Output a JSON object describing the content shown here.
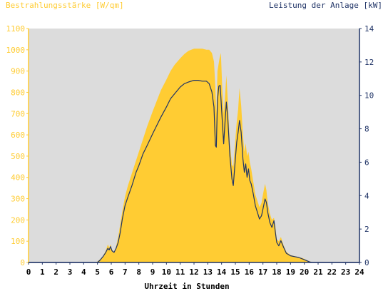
{
  "chart_data": {
    "type": "area",
    "title_left": "Bestrahlungsstärke [W/qm]",
    "title_right": "Leistung der Anlage [kW]",
    "xlabel": "Uhrzeit in Stunden",
    "x_ticks": [
      "0",
      "1",
      "2",
      "3",
      "4",
      "5",
      "6",
      "7",
      "8",
      "9",
      "10",
      "11",
      "12",
      "13",
      "14",
      "15",
      "16",
      "17",
      "18",
      "19",
      "20",
      "21",
      "22",
      "23",
      "24"
    ],
    "y_left_ticks": [
      "0",
      "100",
      "200",
      "300",
      "400",
      "500",
      "600",
      "700",
      "800",
      "900",
      "1000",
      "1100"
    ],
    "y_right_ticks": [
      "0",
      "2",
      "4",
      "6",
      "8",
      "10",
      "12",
      "14"
    ],
    "xlim": [
      0,
      24
    ],
    "ylim_left": [
      0,
      1100
    ],
    "ylim_right": [
      0,
      14
    ],
    "grid": false,
    "colors": {
      "plot_background": "#dcdcdc",
      "irradiance_fill": "#ffcc33",
      "power_line": "#1f3366",
      "left_axis_text": "#ffcc33",
      "right_axis_text": "#1f3366",
      "x_axis_text": "#000000"
    },
    "series": [
      {
        "axis": "left",
        "style": "filled-area",
        "points": [
          [
            0,
            0
          ],
          [
            4.9,
            0
          ],
          [
            5.0,
            5
          ],
          [
            5.2,
            15
          ],
          [
            5.4,
            30
          ],
          [
            5.6,
            55
          ],
          [
            5.75,
            85
          ],
          [
            5.85,
            70
          ],
          [
            5.95,
            85
          ],
          [
            6.05,
            60
          ],
          [
            6.2,
            50
          ],
          [
            6.35,
            75
          ],
          [
            6.5,
            120
          ],
          [
            6.65,
            180
          ],
          [
            6.8,
            240
          ],
          [
            7.0,
            310
          ],
          [
            7.2,
            360
          ],
          [
            7.5,
            420
          ],
          [
            7.8,
            480
          ],
          [
            8.0,
            520
          ],
          [
            8.3,
            580
          ],
          [
            8.6,
            640
          ],
          [
            9.0,
            710
          ],
          [
            9.3,
            760
          ],
          [
            9.6,
            810
          ],
          [
            10.0,
            860
          ],
          [
            10.3,
            900
          ],
          [
            10.6,
            930
          ],
          [
            11.0,
            960
          ],
          [
            11.3,
            980
          ],
          [
            11.6,
            995
          ],
          [
            12.0,
            1005
          ],
          [
            12.3,
            1005
          ],
          [
            12.6,
            1005
          ],
          [
            12.9,
            1000
          ],
          [
            13.1,
            1000
          ],
          [
            13.3,
            985
          ],
          [
            13.45,
            945
          ],
          [
            13.55,
            820
          ],
          [
            13.62,
            700
          ],
          [
            13.7,
            900
          ],
          [
            13.85,
            960
          ],
          [
            13.95,
            985
          ],
          [
            14.05,
            820
          ],
          [
            14.15,
            700
          ],
          [
            14.25,
            780
          ],
          [
            14.35,
            880
          ],
          [
            14.45,
            760
          ],
          [
            14.6,
            560
          ],
          [
            14.75,
            460
          ],
          [
            14.85,
            450
          ],
          [
            15.0,
            580
          ],
          [
            15.1,
            660
          ],
          [
            15.2,
            720
          ],
          [
            15.3,
            820
          ],
          [
            15.42,
            740
          ],
          [
            15.55,
            600
          ],
          [
            15.65,
            520
          ],
          [
            15.75,
            560
          ],
          [
            15.85,
            500
          ],
          [
            15.95,
            520
          ],
          [
            16.05,
            470
          ],
          [
            16.15,
            440
          ],
          [
            16.3,
            380
          ],
          [
            16.45,
            320
          ],
          [
            16.6,
            290
          ],
          [
            16.75,
            260
          ],
          [
            16.9,
            280
          ],
          [
            17.0,
            320
          ],
          [
            17.15,
            370
          ],
          [
            17.25,
            340
          ],
          [
            17.35,
            280
          ],
          [
            17.5,
            230
          ],
          [
            17.65,
            200
          ],
          [
            17.8,
            210
          ],
          [
            17.9,
            170
          ],
          [
            18.0,
            110
          ],
          [
            18.15,
            100
          ],
          [
            18.3,
            120
          ],
          [
            18.5,
            80
          ],
          [
            18.7,
            50
          ],
          [
            19.0,
            35
          ],
          [
            19.3,
            30
          ],
          [
            19.6,
            25
          ],
          [
            19.9,
            20
          ],
          [
            20.2,
            10
          ],
          [
            20.4,
            5
          ],
          [
            20.6,
            0
          ],
          [
            24,
            0
          ]
        ]
      },
      {
        "axis": "right",
        "style": "line",
        "points": [
          [
            0,
            0
          ],
          [
            5.0,
            0
          ],
          [
            5.2,
            0.15
          ],
          [
            5.4,
            0.35
          ],
          [
            5.6,
            0.6
          ],
          [
            5.75,
            0.85
          ],
          [
            5.85,
            0.75
          ],
          [
            5.95,
            0.95
          ],
          [
            6.05,
            0.7
          ],
          [
            6.2,
            0.6
          ],
          [
            6.35,
            0.85
          ],
          [
            6.5,
            1.2
          ],
          [
            6.65,
            1.8
          ],
          [
            6.8,
            2.6
          ],
          [
            7.0,
            3.4
          ],
          [
            7.2,
            3.9
          ],
          [
            7.5,
            4.6
          ],
          [
            7.8,
            5.4
          ],
          [
            8.0,
            5.8
          ],
          [
            8.3,
            6.5
          ],
          [
            8.6,
            7.0
          ],
          [
            9.0,
            7.7
          ],
          [
            9.3,
            8.2
          ],
          [
            9.6,
            8.7
          ],
          [
            10.0,
            9.3
          ],
          [
            10.3,
            9.8
          ],
          [
            10.6,
            10.1
          ],
          [
            11.0,
            10.5
          ],
          [
            11.3,
            10.7
          ],
          [
            11.6,
            10.8
          ],
          [
            12.0,
            10.9
          ],
          [
            12.3,
            10.9
          ],
          [
            12.6,
            10.85
          ],
          [
            12.9,
            10.85
          ],
          [
            13.1,
            10.7
          ],
          [
            13.3,
            10.2
          ],
          [
            13.45,
            9.3
          ],
          [
            13.55,
            7.0
          ],
          [
            13.62,
            6.9
          ],
          [
            13.7,
            9.7
          ],
          [
            13.8,
            10.55
          ],
          [
            13.9,
            10.6
          ],
          [
            14.05,
            8.5
          ],
          [
            14.15,
            7.1
          ],
          [
            14.25,
            8.4
          ],
          [
            14.35,
            9.6
          ],
          [
            14.45,
            8.6
          ],
          [
            14.6,
            6.4
          ],
          [
            14.75,
            5.0
          ],
          [
            14.85,
            4.6
          ],
          [
            15.0,
            6.2
          ],
          [
            15.1,
            7.2
          ],
          [
            15.2,
            7.8
          ],
          [
            15.3,
            8.5
          ],
          [
            15.42,
            7.8
          ],
          [
            15.55,
            6.2
          ],
          [
            15.65,
            5.4
          ],
          [
            15.75,
            5.9
          ],
          [
            15.85,
            5.1
          ],
          [
            15.95,
            5.6
          ],
          [
            16.05,
            4.9
          ],
          [
            16.15,
            4.7
          ],
          [
            16.3,
            4.1
          ],
          [
            16.45,
            3.4
          ],
          [
            16.6,
            3.0
          ],
          [
            16.75,
            2.6
          ],
          [
            16.9,
            2.8
          ],
          [
            17.0,
            3.2
          ],
          [
            17.15,
            3.8
          ],
          [
            17.25,
            3.6
          ],
          [
            17.35,
            3.0
          ],
          [
            17.5,
            2.4
          ],
          [
            17.65,
            2.1
          ],
          [
            17.8,
            2.5
          ],
          [
            17.9,
            1.8
          ],
          [
            18.0,
            1.2
          ],
          [
            18.15,
            1.0
          ],
          [
            18.3,
            1.3
          ],
          [
            18.5,
            0.9
          ],
          [
            18.7,
            0.55
          ],
          [
            19.0,
            0.4
          ],
          [
            19.3,
            0.35
          ],
          [
            19.6,
            0.3
          ],
          [
            19.9,
            0.2
          ],
          [
            20.2,
            0.1
          ],
          [
            20.4,
            0.03
          ],
          [
            20.6,
            0
          ],
          [
            24,
            0
          ]
        ]
      }
    ]
  }
}
